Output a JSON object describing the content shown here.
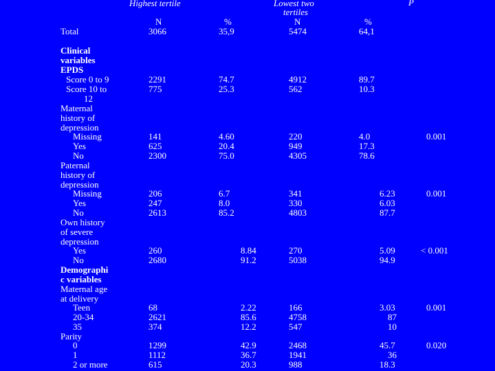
{
  "headers": {
    "highest_tertile": "Highest tertile",
    "lowest_two_tertiles_l1": "Lowest two",
    "lowest_two_tertiles_l2": "tertiles",
    "p": "P",
    "n1": "N",
    "pct1": "%",
    "n2": "N",
    "pct2": "%"
  },
  "rows": {
    "total": {
      "label": "Total",
      "n1": "3066",
      "p1": "35,9",
      "n2": "5474",
      "p2": "64,1"
    },
    "clinical_l1": "Clinical",
    "clinical_l2": "variables",
    "epds": "EPDS",
    "epds_0_9": {
      "label": "Score 0 to 9",
      "n1": "2291",
      "p1": "74.7",
      "n2": "4912",
      "p2": "89.7"
    },
    "epds_10_12": {
      "label_l1": "Score 10 to",
      "label_l2": "12",
      "n1": "775",
      "p1": "25.3",
      "n2": "562",
      "p2": "10.3"
    },
    "mat_l1": "Maternal",
    "mat_l2": "history of",
    "mat_l3": "depression",
    "mat_missing": {
      "label": "Missing",
      "n1": "141",
      "p1": "4.60",
      "n2": "220",
      "p2": "4.0",
      "p": "0.001"
    },
    "mat_yes": {
      "label": "Yes",
      "n1": "625",
      "p1": "20.4",
      "n2": "949",
      "p2": "17.3"
    },
    "mat_no": {
      "label": "No",
      "n1": "2300",
      "p1": "75.0",
      "n2": "4305",
      "p2": "78.6"
    },
    "pat_l1": "Paternal",
    "pat_l2": "history of",
    "pat_l3": "depression",
    "pat_missing": {
      "label": "Missing",
      "n1": "206",
      "p1": "6.7",
      "n2": "341",
      "p2": "6.23",
      "p": "0.001"
    },
    "pat_yes": {
      "label": "Yes",
      "n1": "247",
      "p1": "8.0",
      "n2": "330",
      "p2": "6.03"
    },
    "pat_no": {
      "label": "No",
      "n1": "2613",
      "p1": "85.2",
      "n2": "4803",
      "p2": "87.7"
    },
    "own_l1": "Own history",
    "own_l2": "of severe",
    "own_l3": "depression",
    "own_yes": {
      "label": "Yes",
      "n1": "260",
      "p1": "8.84",
      "n2": "270",
      "p2": "5.09",
      "p": "< 0.001"
    },
    "own_no": {
      "label": "No",
      "n1": "2680",
      "p1": "91.2",
      "n2": "5038",
      "p2": "94.9"
    },
    "demo_l1": "Demographi",
    "demo_l2": "c variables",
    "age_l1": "Maternal age",
    "age_l2": "at delivery",
    "age_teen": {
      "label": "Teen",
      "n1": "68",
      "p1": "2.22",
      "n2": "166",
      "p2": "3.03",
      "p": "0.001"
    },
    "age_20_34": {
      "label": "20-34",
      "n1": "2621",
      "p1": "85.6",
      "n2": "4758",
      "p2": "87"
    },
    "age_35": {
      "label": "35",
      "n1": "374",
      "p1": "12.2",
      "n2": "547",
      "p2": "10"
    },
    "parity": "Parity",
    "parity_0": {
      "label": "0",
      "n1": "1299",
      "p1": "42.9",
      "n2": "2468",
      "p2": "45.7",
      "p": "0.020"
    },
    "parity_1": {
      "label": "1",
      "n1": "1112",
      "p1": "36.7",
      "n2": "1941",
      "p2": "36"
    },
    "parity_2": {
      "label": "2 or more",
      "n1": "615",
      "p1": "20.3",
      "n2": "988",
      "p2": "18.3"
    }
  }
}
